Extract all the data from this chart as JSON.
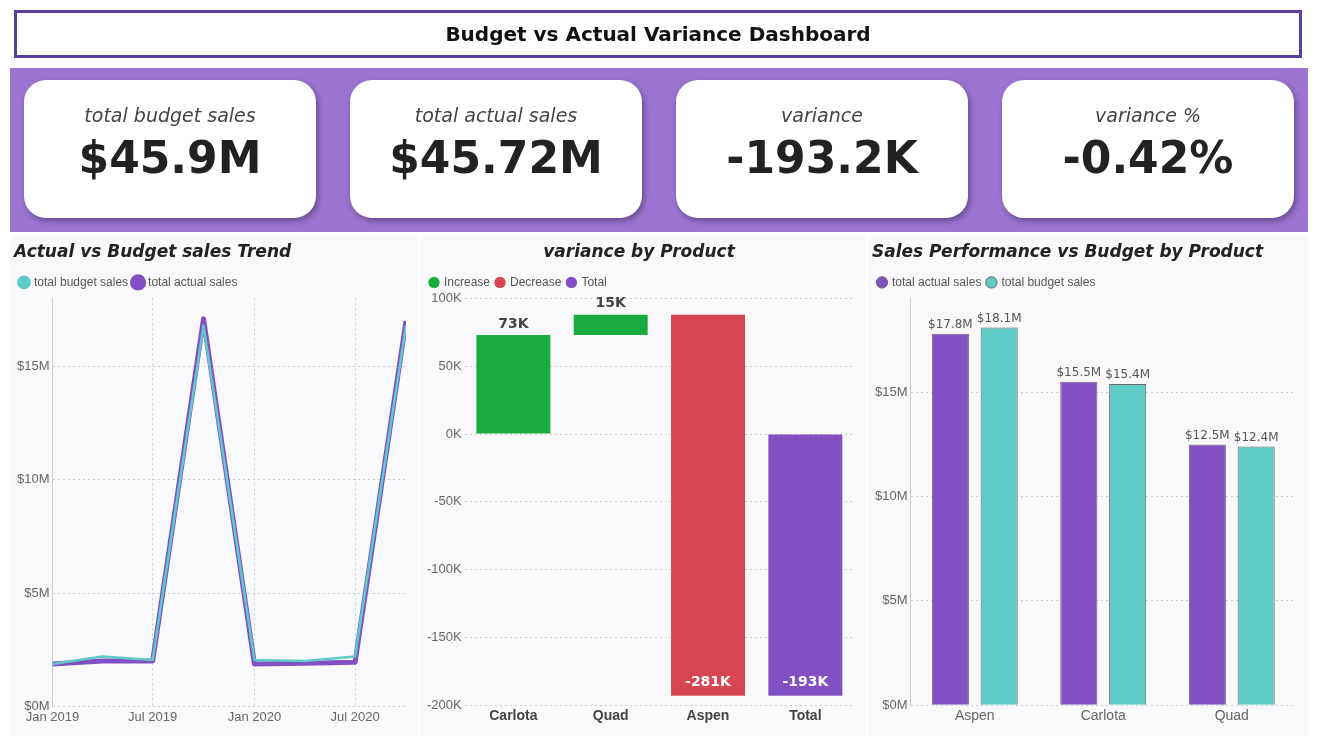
{
  "chart_data": [
    {
      "type": "other",
      "title": "Budget vs Actual Variance Dashboard",
      "annotations": [
        "total budget sales",
        "$45.9M",
        "total actual sales",
        "$45.72M",
        "variance",
        "-193.2K",
        "variance %",
        "-0.42%"
      ]
    },
    {
      "type": "line",
      "title": "Actual vs Budget sales Trend",
      "x": [
        "2019-01",
        "2019-04",
        "2019-07",
        "2019-10",
        "2020-01",
        "2020-04",
        "2020-07",
        "2020-10"
      ],
      "series": [
        {
          "name": "total actual sales",
          "color": "#8350c3",
          "values": [
            1.87,
            2.0,
            2.0,
            17.1,
            1.87,
            1.9,
            1.95,
            17.0
          ]
        },
        {
          "name": "total budget sales",
          "color": "#5ecbc8",
          "values": [
            1.87,
            2.2,
            2.05,
            16.8,
            2.05,
            2.0,
            2.2,
            16.8
          ]
        }
      ],
      "xlim": [
        "2019-01",
        "2020-10"
      ],
      "xticks": [
        {
          "value": "2019-01",
          "label": "Jan 2019"
        },
        {
          "value": "2019-07",
          "label": "Jul 2019"
        },
        {
          "value": "2020-01",
          "label": "Jan 2020"
        },
        {
          "value": "2020-07",
          "label": "Jul 2020"
        }
      ],
      "ylim": [
        0,
        18
      ],
      "yticks": [
        {
          "value": 0,
          "label": "$0M"
        },
        {
          "value": 5,
          "label": "$5M"
        },
        {
          "value": 10,
          "label": "$10M"
        },
        {
          "value": 15,
          "label": "$15M"
        }
      ],
      "grid": true,
      "legend": "top left",
      "marker": "none",
      "line_style": "solid"
    },
    {
      "type": "bar",
      "title": "variance by Product",
      "categories": [
        "Carlota",
        "Quad",
        "Aspen",
        "Total"
      ],
      "series": [
        {
          "name": "Increase",
          "color": "#1aab40",
          "base": [
            0,
            73,
            null,
            null
          ],
          "values": [
            73,
            15,
            null,
            null
          ],
          "value_labels": [
            "73K",
            "15K",
            null,
            null
          ]
        },
        {
          "name": "Decrease",
          "color": "#d64550",
          "base": [
            null,
            null,
            88,
            null
          ],
          "values": [
            null,
            null,
            -281,
            null
          ],
          "value_labels": [
            null,
            null,
            "-281K",
            null
          ]
        },
        {
          "name": "Total",
          "color": "#8350c3",
          "base": [
            null,
            null,
            null,
            0
          ],
          "values": [
            null,
            null,
            null,
            -193
          ],
          "value_labels": [
            null,
            null,
            null,
            "-193K"
          ]
        }
      ],
      "ylim": [
        -200,
        100
      ],
      "yticks": [
        {
          "value": -200,
          "label": "-200K"
        },
        {
          "value": -150,
          "label": "-150K"
        },
        {
          "value": -100,
          "label": "-100K"
        },
        {
          "value": -50,
          "label": "-50K"
        },
        {
          "value": 0,
          "label": "0K"
        },
        {
          "value": 50,
          "label": "50K"
        },
        {
          "value": 100,
          "label": "100K"
        }
      ],
      "grid": "y",
      "legend": "top left"
    },
    {
      "type": "bar",
      "title": "Sales Performance vs Budget by Product",
      "categories": [
        "Aspen",
        "Carlota",
        "Quad"
      ],
      "series": [
        {
          "name": "total actual sales",
          "color": "#8350c3",
          "values": [
            17.8,
            15.5,
            12.5
          ],
          "value_labels": [
            "$17.8M",
            "$15.5M",
            "$12.5M"
          ]
        },
        {
          "name": "total budget sales",
          "color": "#5ecbc8",
          "values": [
            18.1,
            15.4,
            12.4
          ],
          "value_labels": [
            "$18.1M",
            "$15.4M",
            "$12.4M"
          ]
        }
      ],
      "ylim": [
        0,
        19.5
      ],
      "yticks": [
        {
          "value": 0,
          "label": "$0M"
        },
        {
          "value": 5,
          "label": "$5M"
        },
        {
          "value": 10,
          "label": "$10M"
        },
        {
          "value": 15,
          "label": "$15M"
        }
      ],
      "grid": "y",
      "legend": "top left"
    }
  ]
}
